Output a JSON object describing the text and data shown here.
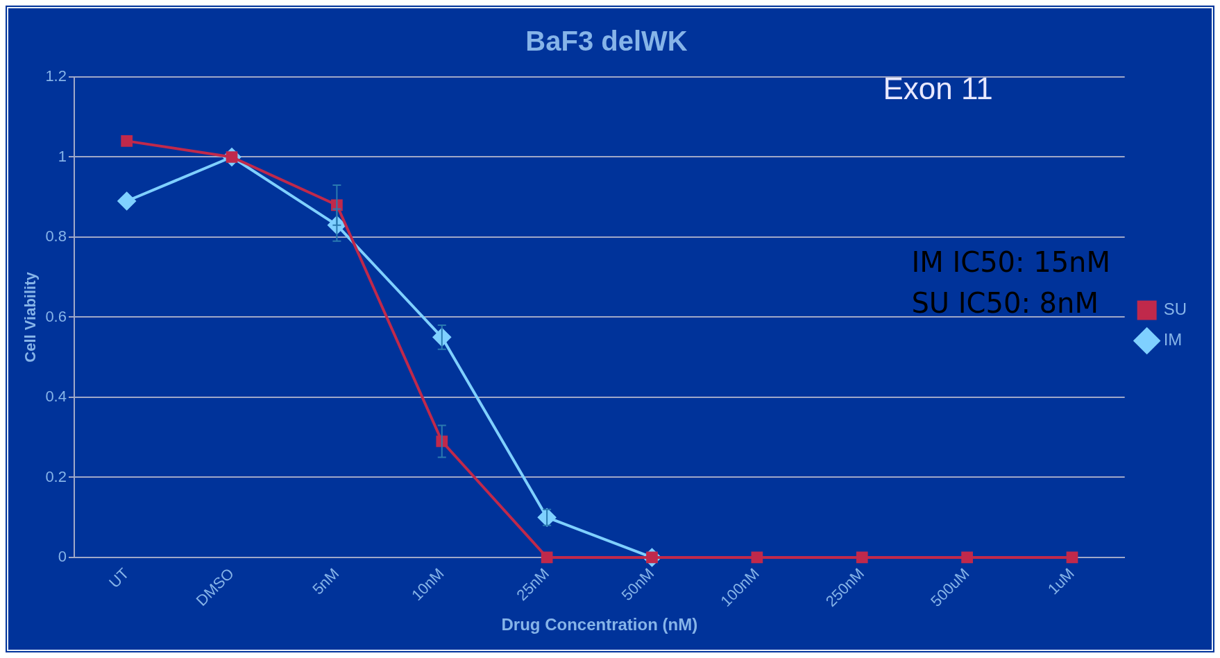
{
  "chart_data": {
    "type": "line",
    "title": "BaF3 delWK",
    "xlabel": "Drug Concentration (nM)",
    "ylabel": "Cell Viability",
    "categories": [
      "UT",
      "DMSO",
      "5nM",
      "10nM",
      "25nM",
      "50nM",
      "100nM",
      "250nM",
      "500uM",
      "1uM"
    ],
    "series": [
      {
        "name": "IM",
        "color": "#7fd0ff",
        "marker": "diamond",
        "values": [
          0.89,
          1.0,
          0.83,
          0.55,
          0.1,
          0,
          null,
          null,
          null,
          null
        ],
        "errors": [
          null,
          null,
          0.04,
          0.03,
          0.02,
          null,
          null,
          null,
          null,
          null
        ]
      },
      {
        "name": "SU",
        "color": "#c0294b",
        "marker": "square",
        "values": [
          1.04,
          1.0,
          0.88,
          0.29,
          0,
          0,
          0,
          0,
          0,
          0
        ],
        "errors": [
          null,
          null,
          0.05,
          0.04,
          null,
          null,
          null,
          null,
          null,
          null
        ]
      }
    ],
    "ylim": [
      0,
      1.2
    ],
    "yticks": [
      0,
      0.2,
      0.4,
      0.6,
      0.8,
      1,
      1.2
    ],
    "grid": "y",
    "legend": "right",
    "annotations": [
      "Exon 11",
      "IM IC50: 15nM",
      "SU IC50: 8nM"
    ]
  }
}
